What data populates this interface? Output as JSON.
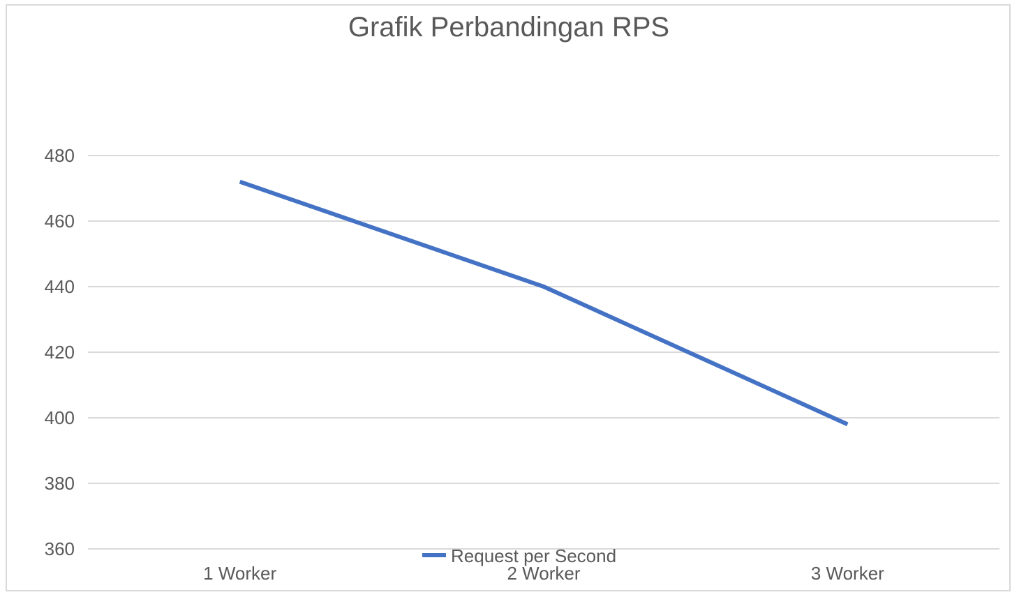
{
  "chart_data": {
    "type": "line",
    "title": "Grafik Perbandingan RPS",
    "xlabel": "",
    "ylabel": "",
    "categories": [
      "1 Worker",
      "2 Worker",
      "3 Worker"
    ],
    "series": [
      {
        "name": "Request per Second",
        "values": [
          472,
          440,
          398
        ],
        "color": "#4472c4"
      }
    ],
    "ylim": [
      360,
      480
    ],
    "yticks": [
      360,
      380,
      400,
      420,
      440,
      460,
      480
    ],
    "grid": true,
    "legend": "bottom-center",
    "colors": {
      "gridline": "#d9d9d9",
      "text": "#595959",
      "frame": "#d9d9d9"
    }
  }
}
